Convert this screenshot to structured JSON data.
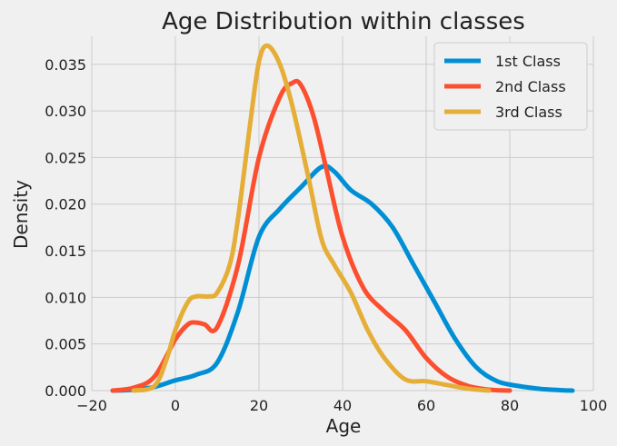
{
  "chart_data": {
    "type": "line",
    "title": "Age Distribution within classes",
    "xlabel": "Age",
    "ylabel": "Density",
    "xlim": [
      -20,
      100
    ],
    "ylim": [
      0,
      0.038
    ],
    "xticks": [
      -20,
      0,
      20,
      40,
      60,
      80,
      100
    ],
    "xtick_labels": [
      "−20",
      "0",
      "20",
      "40",
      "60",
      "80",
      "100"
    ],
    "yticks": [
      0,
      0.005,
      0.01,
      0.015,
      0.02,
      0.025,
      0.03,
      0.035
    ],
    "ytick_labels": [
      "0.000",
      "0.005",
      "0.010",
      "0.015",
      "0.020",
      "0.025",
      "0.030",
      "0.035"
    ],
    "grid": true,
    "legend_position": "top-right",
    "series": [
      {
        "name": "1st Class",
        "color": "#008fd5",
        "x": [
          -15,
          -10,
          -5,
          0,
          5,
          10,
          15,
          20,
          25,
          30,
          35,
          38,
          42,
          47,
          52,
          57,
          62,
          67,
          72,
          77,
          82,
          87,
          92,
          95
        ],
        "y": [
          0.0,
          0.0001,
          0.0004,
          0.0011,
          0.0017,
          0.003,
          0.0085,
          0.0165,
          0.0195,
          0.0218,
          0.024,
          0.0235,
          0.0215,
          0.02,
          0.0175,
          0.0135,
          0.0095,
          0.0055,
          0.0025,
          0.001,
          0.0005,
          0.0002,
          5e-05,
          0.0
        ]
      },
      {
        "name": "2nd Class",
        "color": "#fc4f30",
        "x": [
          -15,
          -10,
          -5,
          0,
          3,
          5,
          7,
          10,
          15,
          20,
          25,
          28,
          30,
          33,
          36,
          40,
          45,
          50,
          55,
          60,
          65,
          70,
          75,
          80
        ],
        "y": [
          0.0,
          0.0003,
          0.0015,
          0.0055,
          0.0071,
          0.0073,
          0.0071,
          0.0068,
          0.0135,
          0.025,
          0.0315,
          0.033,
          0.0328,
          0.0295,
          0.024,
          0.0165,
          0.011,
          0.0085,
          0.0065,
          0.0035,
          0.0015,
          0.0005,
          0.0001,
          0.0
        ]
      },
      {
        "name": "3rd Class",
        "color": "#e5ae38",
        "x": [
          -10,
          -5,
          -2,
          0,
          3,
          5,
          8,
          10,
          13,
          15,
          18,
          20,
          22,
          25,
          28,
          32,
          35,
          38,
          42,
          46,
          50,
          55,
          60,
          65,
          70,
          75
        ],
        "y": [
          0.0,
          0.0005,
          0.0035,
          0.0065,
          0.0095,
          0.0101,
          0.0101,
          0.0105,
          0.0135,
          0.0185,
          0.029,
          0.0353,
          0.037,
          0.035,
          0.0305,
          0.0225,
          0.0162,
          0.0135,
          0.0105,
          0.0065,
          0.0035,
          0.0012,
          0.001,
          0.0006,
          0.0002,
          0.0
        ]
      }
    ]
  }
}
